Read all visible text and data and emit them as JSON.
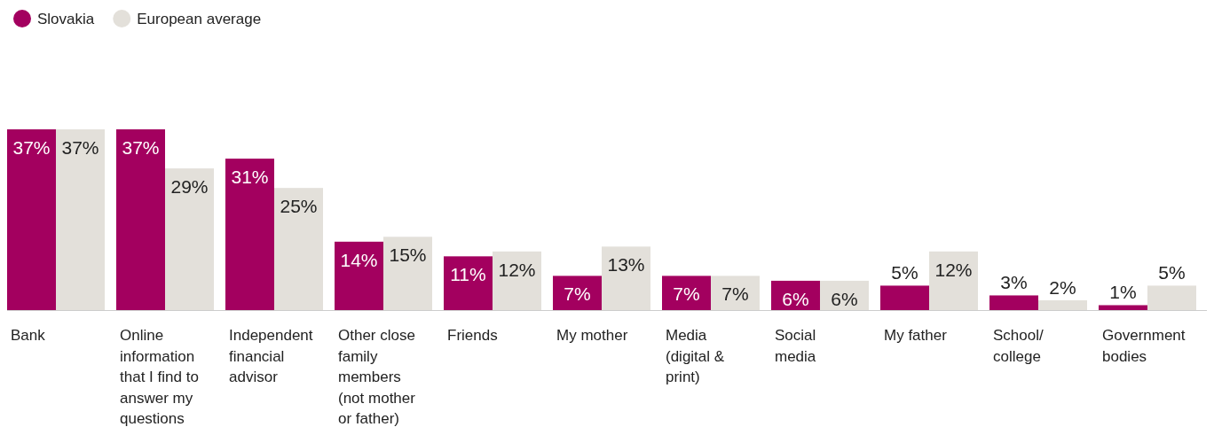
{
  "chart_data": {
    "type": "bar",
    "categories": [
      "Bank",
      "Online information that I find to answer my questions",
      "Independent financial advisor",
      "Other close family members (not mother or father)",
      "Friends",
      "My mother",
      "Media (digital & print)",
      "Social media",
      "My father",
      "School/ college",
      "Government bodies"
    ],
    "series": [
      {
        "name": "Slovakia",
        "color": "#a3005f",
        "values": [
          37,
          37,
          31,
          14,
          11,
          7,
          7,
          6,
          5,
          3,
          1
        ],
        "value_labels": [
          "37%",
          "37%",
          "31%",
          "14%",
          "11%",
          "7%",
          "7%",
          "6%",
          "5%",
          "3%",
          "1%"
        ]
      },
      {
        "name": "European average",
        "color": "#e3e0da",
        "values": [
          37,
          29,
          25,
          15,
          12,
          13,
          7,
          6,
          12,
          2,
          5
        ],
        "value_labels": [
          "37%",
          "29%",
          "25%",
          "15%",
          "12%",
          "13%",
          "7%",
          "6%",
          "12%",
          "2%",
          "5%"
        ]
      }
    ],
    "legend": "top left"
  }
}
